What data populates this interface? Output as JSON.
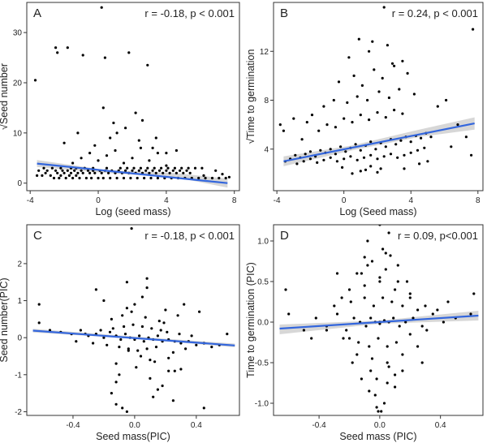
{
  "chart_data": [
    {
      "panel": "A",
      "type": "scatter",
      "annotation": "r = -0.18, p < 0.001",
      "xlabel": "Log (seed mass)",
      "ylabel": "√Seed number",
      "xlim": [
        -4.2,
        8.3
      ],
      "ylim": [
        -1.5,
        36
      ],
      "xticks": [
        -4,
        0,
        4,
        8
      ],
      "yticks": [
        0,
        10,
        20,
        30
      ],
      "grid": false,
      "colors": {
        "points": "#000000",
        "fit": "#3366dd",
        "band": "#bdbdbd"
      },
      "fit_line": {
        "x": [
          -3.6,
          7.6
        ],
        "y": [
          3.9,
          0.0
        ]
      },
      "ci_band": {
        "x": [
          -3.6,
          0.5,
          4.5,
          7.6
        ],
        "upper": [
          4.6,
          2.6,
          2.0,
          0.9
        ],
        "lower": [
          3.2,
          2.0,
          1.2,
          -0.9
        ]
      },
      "points": {
        "x": [
          -3.6,
          -3.3,
          -2.8,
          -2.2,
          -1.7,
          -1.3,
          -3.1,
          -2.4,
          -2.0,
          -1.6,
          -1.2,
          -0.9,
          -0.5,
          -0.2,
          0.2,
          0.6,
          1.0,
          1.4,
          1.8,
          2.2,
          2.6,
          3.0,
          3.4,
          3.8,
          4.2,
          4.6,
          5.0,
          -3.5,
          -3.0,
          -2.5,
          -2.1,
          -1.8,
          -1.4,
          -1.0,
          -0.6,
          -0.3,
          0.1,
          0.4,
          0.8,
          1.2,
          1.6,
          2.0,
          2.4,
          2.8,
          3.2,
          3.6,
          4.0,
          4.4,
          4.8,
          5.2,
          -2.6,
          -2.3,
          -1.9,
          -1.5,
          -1.1,
          -0.7,
          -0.4,
          0.0,
          0.3,
          0.7,
          1.1,
          1.5,
          1.9,
          2.3,
          2.7,
          3.1,
          3.5,
          3.9,
          4.3,
          4.7,
          5.1,
          5.5,
          5.9,
          6.3,
          6.7,
          7.1,
          7.5,
          -3.2,
          -2.7,
          -2.2,
          -1.6,
          -1.3,
          -0.8,
          -0.3,
          0.5,
          1.3,
          1.7,
          2.1,
          2.5,
          2.9,
          3.3,
          3.7,
          4.1,
          4.5,
          4.9,
          5.3,
          5.7,
          6.1,
          -1.5,
          -1.0,
          -0.5,
          0.0,
          0.5,
          1.0,
          1.5,
          2.0,
          2.5,
          3.0,
          3.5,
          4.0,
          -2.0,
          -1.2,
          -0.2,
          0.7,
          1.6,
          2.4,
          3.2,
          4.0,
          5.4,
          6.2,
          6.9,
          7.3,
          7.7,
          -3.7,
          -2.5,
          -0.9,
          0.3,
          1.1,
          2.6,
          3.4,
          4.6,
          -1.8,
          -2.4,
          0.4,
          1.8,
          2.9,
          0.9,
          2.2,
          0.2
        ],
        "y": [
          1.5,
          1.5,
          1.5,
          1.5,
          1.5,
          1.5,
          2.0,
          2.0,
          2.0,
          2.0,
          2.0,
          2.0,
          2.0,
          2.0,
          2.0,
          2.0,
          2.0,
          2.0,
          2.0,
          2.0,
          2.0,
          2.0,
          2.0,
          2.0,
          2.0,
          2.0,
          2.0,
          2.5,
          2.5,
          2.5,
          2.5,
          2.5,
          2.5,
          2.5,
          2.5,
          2.5,
          2.5,
          2.5,
          2.5,
          2.5,
          2.5,
          2.5,
          2.5,
          2.5,
          2.5,
          2.5,
          2.5,
          2.5,
          2.5,
          2.5,
          1.0,
          1.0,
          1.0,
          1.0,
          1.0,
          1.0,
          1.0,
          1.0,
          1.0,
          1.0,
          1.0,
          1.0,
          1.0,
          1.0,
          1.0,
          1.0,
          1.0,
          1.0,
          1.0,
          1.0,
          1.0,
          1.0,
          1.0,
          1.0,
          1.0,
          1.0,
          1.0,
          3.0,
          3.0,
          3.0,
          3.0,
          3.0,
          3.0,
          3.0,
          3.0,
          3.0,
          3.0,
          3.0,
          3.0,
          3.0,
          3.0,
          3.0,
          3.0,
          3.0,
          3.0,
          3.0,
          3.0,
          3.0,
          4.0,
          5.0,
          6.0,
          4.5,
          5.5,
          6.5,
          4.0,
          5.0,
          7.0,
          4.5,
          6.0,
          3.5,
          8.0,
          10.0,
          7.5,
          9.0,
          11.0,
          8.5,
          7.0,
          6.0,
          2.0,
          1.5,
          2.5,
          1.8,
          1.2,
          20.5,
          27.0,
          25.5,
          15.0,
          10.0,
          12.5,
          9.0,
          6.5,
          27.0,
          26.0,
          25.0,
          26.0,
          23.5,
          12.0,
          14.0,
          35.0
        ]
      }
    },
    {
      "panel": "B",
      "type": "scatter",
      "annotation": "r = 0.24, p < 0.001",
      "xlabel": "Log (Seed mass)",
      "ylabel": "√Time to germination",
      "xlim": [
        -4.2,
        8.3
      ],
      "ylim": [
        0.6,
        16
      ],
      "xticks": [
        -4,
        0,
        4,
        8
      ],
      "yticks": [
        4,
        8,
        12
      ],
      "grid": false,
      "colors": {
        "points": "#000000",
        "fit": "#3366dd",
        "band": "#bdbdbd"
      },
      "fit_line": {
        "x": [
          -3.6,
          7.8
        ],
        "y": [
          3.0,
          6.1
        ]
      },
      "ci_band": {
        "x": [
          -3.6,
          0.5,
          4.5,
          7.8
        ],
        "upper": [
          3.4,
          4.3,
          5.6,
          6.6
        ],
        "lower": [
          2.6,
          3.9,
          5.0,
          5.6
        ]
      },
      "points": {
        "x": [
          -3.5,
          -3.2,
          -2.9,
          -2.6,
          -2.3,
          -2.0,
          -1.7,
          -1.4,
          -1.1,
          -0.8,
          -0.5,
          -0.2,
          0.1,
          0.4,
          0.7,
          1.0,
          1.3,
          1.6,
          1.9,
          2.2,
          2.5,
          2.8,
          3.1,
          3.4,
          3.7,
          4.0,
          4.3,
          4.6,
          4.9,
          5.2,
          -2.8,
          -2.4,
          -2.0,
          -1.6,
          -1.2,
          -0.8,
          -0.4,
          0.0,
          0.4,
          0.8,
          1.2,
          1.6,
          2.0,
          2.4,
          2.8,
          3.2,
          3.6,
          4.0,
          4.4,
          4.8,
          -1.5,
          -1.0,
          -0.5,
          0.0,
          0.5,
          1.0,
          1.5,
          2.0,
          2.5,
          3.0,
          3.5,
          -1.2,
          -0.6,
          0.2,
          0.8,
          1.4,
          2.1,
          2.7,
          3.3,
          -0.3,
          0.6,
          1.1,
          1.8,
          2.3,
          2.9,
          3.8,
          -2.2,
          -1.9,
          0.3,
          1.5,
          2.6,
          3.5,
          4.2,
          5.6,
          6.1,
          6.8,
          7.3,
          7.6,
          -3.6,
          -3.0,
          -2.5,
          0.9,
          1.7,
          2.4,
          3.0,
          -0.1,
          1.0,
          2.2,
          0.5,
          1.3,
          2.0,
          1.6,
          3.6,
          4.5,
          5.0,
          6.4,
          7.7,
          -3.8
        ],
        "y": [
          3.0,
          3.2,
          3.5,
          3.3,
          3.6,
          3.8,
          3.4,
          3.9,
          3.7,
          4.0,
          3.6,
          4.2,
          3.8,
          4.1,
          4.4,
          3.9,
          4.3,
          4.6,
          4.0,
          4.5,
          4.2,
          4.8,
          4.4,
          4.7,
          5.0,
          4.6,
          5.1,
          4.9,
          5.3,
          5.0,
          2.8,
          3.0,
          3.2,
          2.9,
          3.1,
          3.3,
          3.0,
          3.2,
          3.4,
          3.1,
          3.3,
          3.5,
          3.2,
          3.4,
          3.6,
          3.3,
          3.5,
          3.7,
          3.9,
          4.1,
          5.5,
          6.0,
          5.8,
          6.5,
          6.2,
          6.8,
          6.4,
          7.0,
          6.6,
          7.2,
          6.9,
          7.5,
          8.0,
          7.8,
          8.3,
          8.0,
          8.7,
          8.2,
          8.9,
          9.5,
          10.0,
          9.2,
          10.5,
          9.8,
          11.0,
          10.2,
          6.2,
          6.8,
          11.5,
          12.0,
          12.5,
          11.2,
          8.5,
          7.5,
          8.0,
          6.0,
          5.0,
          3.5,
          5.5,
          6.5,
          4.8,
          13.0,
          12.8,
          15.6,
          10.8,
          2.5,
          2.2,
          2.4,
          2.0,
          2.3,
          2.1,
          2.6,
          2.4,
          2.8,
          3.0,
          4.2,
          13.8,
          6.0
        ]
      }
    },
    {
      "panel": "C",
      "type": "scatter",
      "annotation": "r = -0.18, p < 0.001",
      "xlabel": "Seed mass(PIC)",
      "ylabel": "Seed number(PIC)",
      "xlim": [
        -0.7,
        0.68
      ],
      "ylim": [
        -2.1,
        3.05
      ],
      "xticks": [
        -0.4,
        0.0,
        0.4
      ],
      "yticks": [
        -2,
        -1,
        0,
        1,
        2
      ],
      "grid": false,
      "colors": {
        "points": "#000000",
        "fit": "#3366dd",
        "band": "#bdbdbd"
      },
      "fit_line": {
        "x": [
          -0.66,
          0.65
        ],
        "y": [
          0.19,
          -0.21
        ]
      },
      "ci_band": {
        "x": [
          -0.66,
          0.0,
          0.65
        ],
        "upper": [
          0.24,
          0.03,
          -0.16
        ],
        "lower": [
          0.14,
          -0.03,
          -0.26
        ]
      },
      "points": {
        "x": [
          -0.62,
          -0.55,
          -0.48,
          -0.41,
          -0.35,
          -0.3,
          -0.25,
          -0.2,
          -0.16,
          -0.12,
          -0.09,
          -0.06,
          -0.03,
          0.0,
          0.03,
          0.06,
          0.09,
          0.12,
          0.15,
          0.18,
          0.22,
          0.26,
          0.3,
          0.35,
          0.4,
          0.45,
          0.5,
          0.55,
          -0.38,
          -0.32,
          -0.27,
          -0.22,
          -0.18,
          -0.14,
          -0.1,
          -0.07,
          -0.04,
          -0.01,
          0.02,
          0.05,
          0.08,
          0.11,
          0.14,
          0.17,
          0.21,
          0.25,
          0.29,
          0.33,
          0.37,
          -0.15,
          -0.08,
          -0.02,
          0.04,
          0.1,
          0.16,
          0.22,
          -0.12,
          -0.05,
          0.01,
          0.07,
          0.13,
          0.19,
          0.26,
          -0.2,
          -0.1,
          0.0,
          0.1,
          0.2,
          0.3,
          -0.25,
          -0.12,
          0.05,
          0.18,
          0.28,
          0.42,
          -0.05,
          0.08,
          -0.15,
          0.12,
          0.25,
          -0.08,
          0.15,
          -0.05,
          0.22,
          0.45,
          -0.62,
          0.6,
          -0.02,
          0.08,
          -0.04,
          -0.12,
          0.32
        ],
        "y": [
          0.4,
          0.2,
          0.15,
          0.1,
          0.2,
          0.05,
          0.1,
          0.0,
          0.15,
          0.05,
          -0.05,
          0.1,
          0.0,
          -0.05,
          0.05,
          -0.1,
          0.0,
          -0.05,
          0.05,
          -0.1,
          -0.05,
          -0.1,
          -0.15,
          -0.1,
          -0.2,
          -0.15,
          -0.25,
          -0.2,
          -0.1,
          0.1,
          -0.15,
          0.2,
          -0.2,
          0.25,
          -0.25,
          0.3,
          -0.3,
          0.35,
          -0.35,
          0.3,
          -0.3,
          0.25,
          -0.25,
          0.2,
          0.15,
          -0.4,
          0.1,
          -0.3,
          0.05,
          0.5,
          0.6,
          0.7,
          -0.5,
          -0.6,
          0.45,
          -0.55,
          -0.7,
          0.8,
          -0.8,
          0.55,
          -0.65,
          0.4,
          -0.9,
          1.0,
          -1.0,
          0.9,
          -1.1,
          0.75,
          -0.85,
          1.3,
          -1.2,
          1.1,
          -1.3,
          0.6,
          0.7,
          1.5,
          1.6,
          -1.5,
          -1.6,
          -1.7,
          -1.9,
          -1.4,
          -2.0,
          -0.9,
          -1.9,
          0.9,
          0.1,
          2.95,
          1.35,
          -0.35,
          -1.8,
          0.9
        ]
      }
    },
    {
      "panel": "D",
      "type": "scatter",
      "annotation": "r = 0.09, p<0.001",
      "xlabel": "Seed mass (PIC)",
      "ylabel": "Time to germination (PIC)",
      "xlim": [
        -0.7,
        0.68
      ],
      "ylim": [
        -1.15,
        1.2
      ],
      "xticks": [
        -0.4,
        0.0,
        0.4
      ],
      "yticks": [
        -1.0,
        -0.5,
        0.0,
        0.5,
        1.0
      ],
      "grid": false,
      "colors": {
        "points": "#000000",
        "fit": "#3366dd",
        "band": "#bdbdbd"
      },
      "fit_line": {
        "x": [
          -0.66,
          0.65
        ],
        "y": [
          -0.08,
          0.08
        ]
      },
      "ci_band": {
        "x": [
          -0.66,
          0.0,
          0.65
        ],
        "upper": [
          -0.03,
          0.02,
          0.14
        ],
        "lower": [
          -0.15,
          -0.02,
          0.02
        ]
      },
      "points": {
        "x": [
          -0.6,
          -0.5,
          -0.42,
          -0.35,
          -0.28,
          -0.22,
          -0.17,
          -0.13,
          -0.09,
          -0.06,
          -0.03,
          0.0,
          0.03,
          0.06,
          0.09,
          0.13,
          0.17,
          0.22,
          0.28,
          0.35,
          0.42,
          0.5,
          0.6,
          -0.3,
          -0.24,
          -0.19,
          -0.14,
          -0.1,
          -0.07,
          -0.04,
          -0.01,
          0.02,
          0.05,
          0.08,
          0.11,
          0.15,
          0.2,
          0.25,
          0.31,
          -0.2,
          -0.15,
          -0.1,
          -0.05,
          0.0,
          0.05,
          0.1,
          0.15,
          0.2,
          -0.12,
          -0.06,
          0.0,
          0.06,
          0.12,
          -0.08,
          -0.02,
          0.04,
          0.1,
          -0.25,
          0.25,
          -0.18,
          0.18,
          -0.1,
          0.1,
          -0.05,
          0.05,
          -0.15,
          0.15,
          0.0,
          -0.35,
          0.38,
          -0.45,
          0.45,
          0.02,
          -0.03,
          0.07,
          -0.07,
          0.12,
          -0.12,
          -0.08,
          0.03,
          -0.02,
          0.06,
          -0.62,
          0.62,
          0.3,
          -0.28,
          0.28,
          -0.2,
          0.2,
          0.0,
          0.01,
          -0.01,
          0.04
        ],
        "y": [
          0.1,
          -0.1,
          0.05,
          -0.05,
          0.1,
          -0.1,
          0.05,
          0.0,
          -0.05,
          0.05,
          0.0,
          -0.02,
          0.02,
          0.0,
          0.05,
          -0.05,
          0.0,
          0.05,
          -0.05,
          0.1,
          0.0,
          0.05,
          0.1,
          0.2,
          -0.2,
          0.25,
          -0.25,
          0.3,
          -0.3,
          0.2,
          -0.2,
          0.3,
          -0.3,
          0.25,
          -0.25,
          0.2,
          -0.15,
          0.15,
          -0.1,
          0.4,
          -0.4,
          0.45,
          -0.45,
          0.5,
          -0.5,
          0.4,
          -0.4,
          0.35,
          0.6,
          -0.6,
          0.55,
          -0.55,
          0.5,
          0.7,
          -0.7,
          0.65,
          -0.65,
          0.3,
          -0.3,
          -0.5,
          0.5,
          0.8,
          -0.8,
          0.75,
          -0.75,
          0.6,
          -0.6,
          0.0,
          -0.1,
          0.15,
          -0.2,
          0.25,
          0.9,
          -0.9,
          0.82,
          -0.85,
          0.7,
          -0.7,
          1.0,
          -1.0,
          -1.05,
          1.1,
          0.4,
          0.35,
          0.2,
          0.6,
          -0.5,
          -0.2,
          0.3,
          1.2,
          -1.1,
          -1.1,
          0.85
        ]
      }
    }
  ]
}
